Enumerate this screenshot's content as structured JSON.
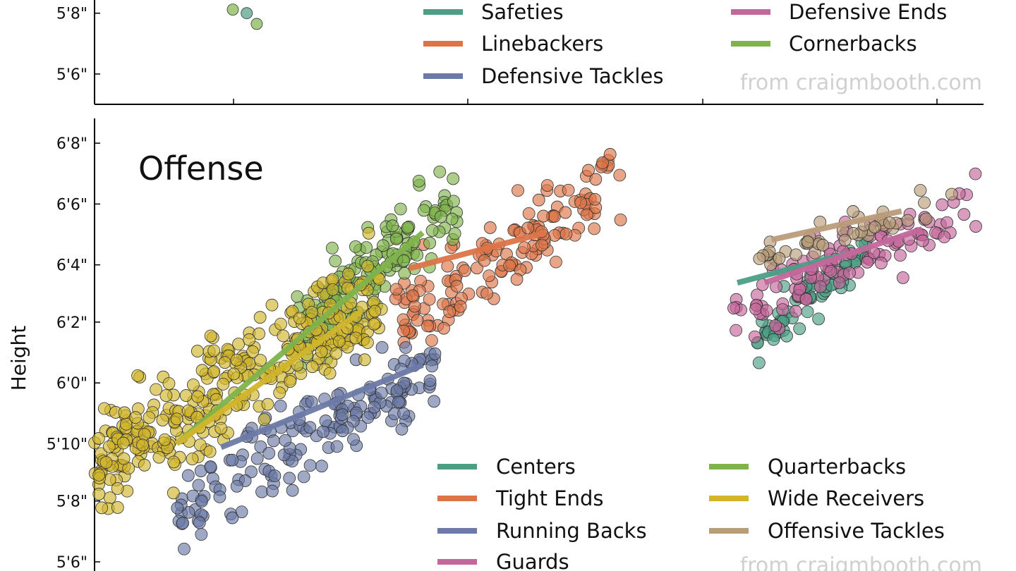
{
  "chart_data": [
    {
      "type": "scatter",
      "title": "",
      "xlabel": "",
      "ylabel": "",
      "ylim": [
        5.5,
        6.9
      ],
      "y_ticks": [
        5.67,
        5.5
      ],
      "y_tick_labels": [
        "5'8\"",
        "5'6\""
      ],
      "legend_position": "top-right",
      "watermark": "from craigmbooth.com",
      "series": [
        {
          "name": "Safeties",
          "color": "#4c9e84",
          "points": [
            [
              1.4,
              5.67
            ]
          ]
        },
        {
          "name": "Linebackers",
          "color": "#dd7448",
          "points": []
        },
        {
          "name": "Defensive Tackles",
          "color": "#6b7aa6",
          "points": []
        },
        {
          "name": "Defensive Ends",
          "color": "#c4679b",
          "points": []
        },
        {
          "name": "Cornerbacks",
          "color": "#7fb34c",
          "points": [
            [
              1.3,
              5.68
            ],
            [
              1.65,
              5.64
            ],
            [
              1.65,
              5.75
            ]
          ]
        }
      ]
    },
    {
      "type": "scatter",
      "title": "Offense",
      "xlabel": "",
      "ylabel": "Height",
      "ylim": [
        5.5,
        6.9
      ],
      "y_ticks": [
        6.67,
        6.5,
        6.33,
        6.17,
        6.0,
        5.83,
        5.67,
        5.5
      ],
      "y_tick_labels": [
        "6'8\"",
        "6'6\"",
        "6'4\"",
        "6'2\"",
        "6'0\"",
        "5'10\"",
        "5'8\"",
        "5'6\""
      ],
      "legend_position": "bottom-right",
      "watermark": "from craigmbooth.com",
      "series": [
        {
          "name": "Centers",
          "color": "#4c9e84",
          "seed": 11,
          "n": 70,
          "x": [
            9.6,
            11.3
          ],
          "y": [
            6.02,
            6.47
          ],
          "trend": [
            [
              9.4,
              6.28
            ],
            [
              11.0,
              6.36
            ]
          ]
        },
        {
          "name": "Tight Ends",
          "color": "#dd7448",
          "seed": 23,
          "n": 150,
          "x": [
            4.4,
            7.7
          ],
          "y": [
            6.0,
            6.75
          ],
          "trend": [
            [
              4.6,
              6.32
            ],
            [
              6.6,
              6.42
            ]
          ]
        },
        {
          "name": "Running Backs",
          "color": "#6b7aa6",
          "seed": 37,
          "n": 170,
          "x": [
            1.2,
            5.0
          ],
          "y": [
            5.5,
            6.2
          ],
          "trend": [
            [
              1.85,
              5.82
            ],
            [
              4.8,
              6.05
            ]
          ]
        },
        {
          "name": "Guards",
          "color": "#c4679b",
          "seed": 41,
          "n": 110,
          "x": [
            9.3,
            12.9
          ],
          "y": [
            6.07,
            6.63
          ],
          "trend": [
            [
              9.8,
              6.28
            ],
            [
              12.1,
              6.43
            ]
          ]
        },
        {
          "name": "Quarterbacks",
          "color": "#7fb34c",
          "seed": 53,
          "n": 150,
          "x": [
            2.9,
            5.3
          ],
          "y": [
            5.98,
            6.68
          ],
          "trend": [
            [
              1.2,
              5.83
            ],
            [
              4.8,
              6.42
            ]
          ]
        },
        {
          "name": "Wide Receivers",
          "color": "#d1b52b",
          "seed": 67,
          "n": 330,
          "x": [
            0.0,
            4.2
          ],
          "y": [
            5.58,
            6.45
          ],
          "trend": [
            [
              1.2,
              5.83
            ],
            [
              3.9,
              6.2
            ]
          ]
        },
        {
          "name": "Offensive Tackles",
          "color": "#b99c79",
          "seed": 79,
          "n": 45,
          "x": [
            9.6,
            12.6
          ],
          "y": [
            6.27,
            6.6
          ],
          "trend": [
            [
              9.9,
              6.4
            ],
            [
              11.8,
              6.48
            ]
          ]
        }
      ]
    }
  ]
}
